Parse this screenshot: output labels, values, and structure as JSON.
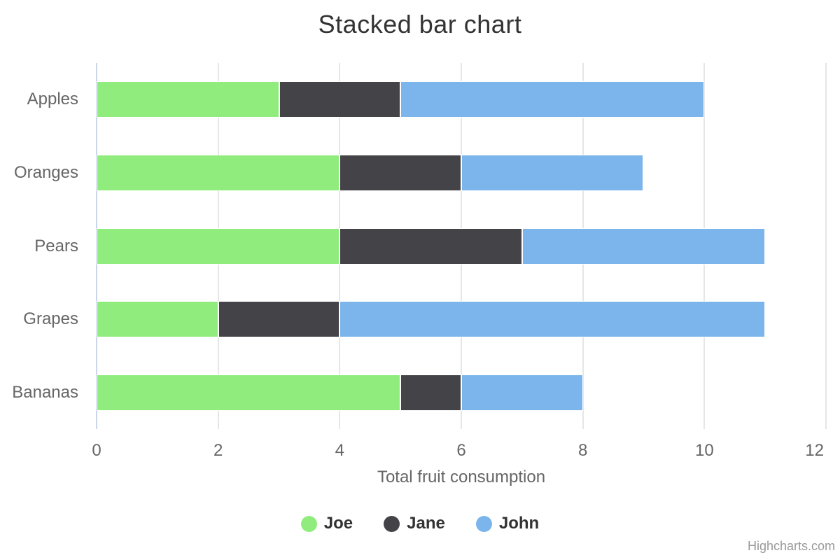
{
  "title": "Stacked bar chart",
  "credits_label": "Highcharts.com",
  "chart_data": {
    "type": "bar",
    "stacked": true,
    "orientation": "horizontal",
    "title": "Stacked bar chart",
    "categories": [
      "Apples",
      "Oranges",
      "Pears",
      "Grapes",
      "Bananas"
    ],
    "series": [
      {
        "name": "Joe",
        "color": "#90ed7d",
        "values": [
          3,
          4,
          4,
          2,
          5
        ]
      },
      {
        "name": "Jane",
        "color": "#434348",
        "values": [
          2,
          2,
          3,
          2,
          1
        ]
      },
      {
        "name": "John",
        "color": "#7cb5ec",
        "values": [
          5,
          3,
          4,
          7,
          2
        ]
      }
    ],
    "stack_totals": [
      10,
      9,
      11,
      11,
      8
    ],
    "xlabel": "Total fruit consumption",
    "ylabel": "",
    "x_ticks": [
      0,
      2,
      4,
      6,
      8,
      10,
      12
    ],
    "xlim": [
      0,
      12
    ],
    "grid": "vertical-only",
    "legend_position": "bottom-center"
  },
  "colors": {
    "background": "#ffffff",
    "axis_line": "#ccd6eb",
    "grid_line": "#e6e6e6",
    "bar_border": "#ffffff",
    "title_text": "#333333",
    "label_text": "#666666",
    "legend_text": "#333333",
    "credits_text": "#999999"
  }
}
